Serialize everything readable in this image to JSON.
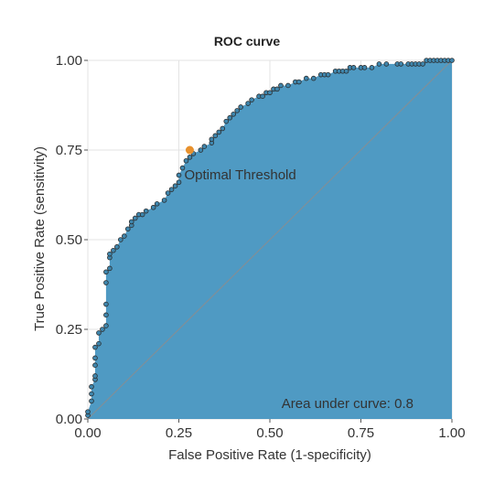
{
  "chart_data": {
    "type": "area",
    "title": "ROC curve",
    "xlabel": "False Positive Rate (1-specificity)",
    "ylabel": "True Positive Rate (sensitivity)",
    "xlim": [
      0,
      1
    ],
    "ylim": [
      0,
      1
    ],
    "x_ticks": [
      0,
      0.25,
      0.5,
      0.75,
      1
    ],
    "y_ticks": [
      0,
      0.25,
      0.5,
      0.75,
      1
    ],
    "x_tick_labels": [
      "0.00",
      "0.25",
      "0.50",
      "0.75",
      "1.00"
    ],
    "y_tick_labels": [
      "0.00",
      "0.25",
      "0.50",
      "0.75",
      "1.00"
    ],
    "grid": true,
    "series": [
      {
        "x": [
          0.0,
          0.0,
          0.01,
          0.01,
          0.01,
          0.02,
          0.02,
          0.02,
          0.02,
          0.02,
          0.03,
          0.03,
          0.04,
          0.05,
          0.05,
          0.05,
          0.05,
          0.05,
          0.06,
          0.06,
          0.06,
          0.07,
          0.08,
          0.09,
          0.1,
          0.11,
          0.12,
          0.12,
          0.13,
          0.14,
          0.15,
          0.16,
          0.18,
          0.19,
          0.21,
          0.22,
          0.23,
          0.24,
          0.25,
          0.25,
          0.26,
          0.27,
          0.28,
          0.29,
          0.31,
          0.32,
          0.34,
          0.34,
          0.35,
          0.36,
          0.37,
          0.38,
          0.39,
          0.4,
          0.41,
          0.42,
          0.44,
          0.45,
          0.47,
          0.48,
          0.49,
          0.5,
          0.51,
          0.52,
          0.53,
          0.55,
          0.57,
          0.58,
          0.6,
          0.62,
          0.64,
          0.65,
          0.66,
          0.68,
          0.69,
          0.7,
          0.71,
          0.72,
          0.73,
          0.75,
          0.76,
          0.78,
          0.8,
          0.82,
          0.85,
          0.86,
          0.88,
          0.89,
          0.9,
          0.91,
          0.92,
          0.93,
          0.94,
          0.95,
          0.96,
          0.97,
          0.98,
          0.99,
          1.0
        ],
        "y": [
          0.01,
          0.02,
          0.05,
          0.07,
          0.09,
          0.11,
          0.12,
          0.15,
          0.17,
          0.2,
          0.21,
          0.24,
          0.25,
          0.26,
          0.29,
          0.32,
          0.38,
          0.41,
          0.42,
          0.45,
          0.46,
          0.47,
          0.48,
          0.5,
          0.51,
          0.53,
          0.54,
          0.55,
          0.56,
          0.57,
          0.57,
          0.58,
          0.59,
          0.6,
          0.61,
          0.63,
          0.64,
          0.65,
          0.66,
          0.68,
          0.7,
          0.72,
          0.73,
          0.74,
          0.75,
          0.76,
          0.77,
          0.78,
          0.79,
          0.8,
          0.81,
          0.83,
          0.84,
          0.85,
          0.86,
          0.87,
          0.88,
          0.89,
          0.9,
          0.9,
          0.91,
          0.91,
          0.92,
          0.92,
          0.93,
          0.93,
          0.94,
          0.94,
          0.95,
          0.95,
          0.96,
          0.96,
          0.96,
          0.97,
          0.97,
          0.97,
          0.97,
          0.98,
          0.98,
          0.98,
          0.98,
          0.98,
          0.99,
          0.99,
          0.99,
          0.99,
          0.99,
          0.99,
          0.99,
          0.99,
          0.99,
          1.0,
          1.0,
          1.0,
          1.0,
          1.0,
          1.0,
          1.0,
          1.0
        ]
      }
    ],
    "optimal_point": {
      "x": 0.28,
      "y": 0.75,
      "label": "Optimal Threshold"
    },
    "auc_label": "Area under curve: 0.8",
    "colors": {
      "fill": "#4f9ac3",
      "marker": "#3f86ad",
      "marker_edge": "#2b2b2b",
      "optimal": "#e8912d",
      "diagonal": "#7f8f99",
      "grid": "#e3e3e3"
    }
  }
}
